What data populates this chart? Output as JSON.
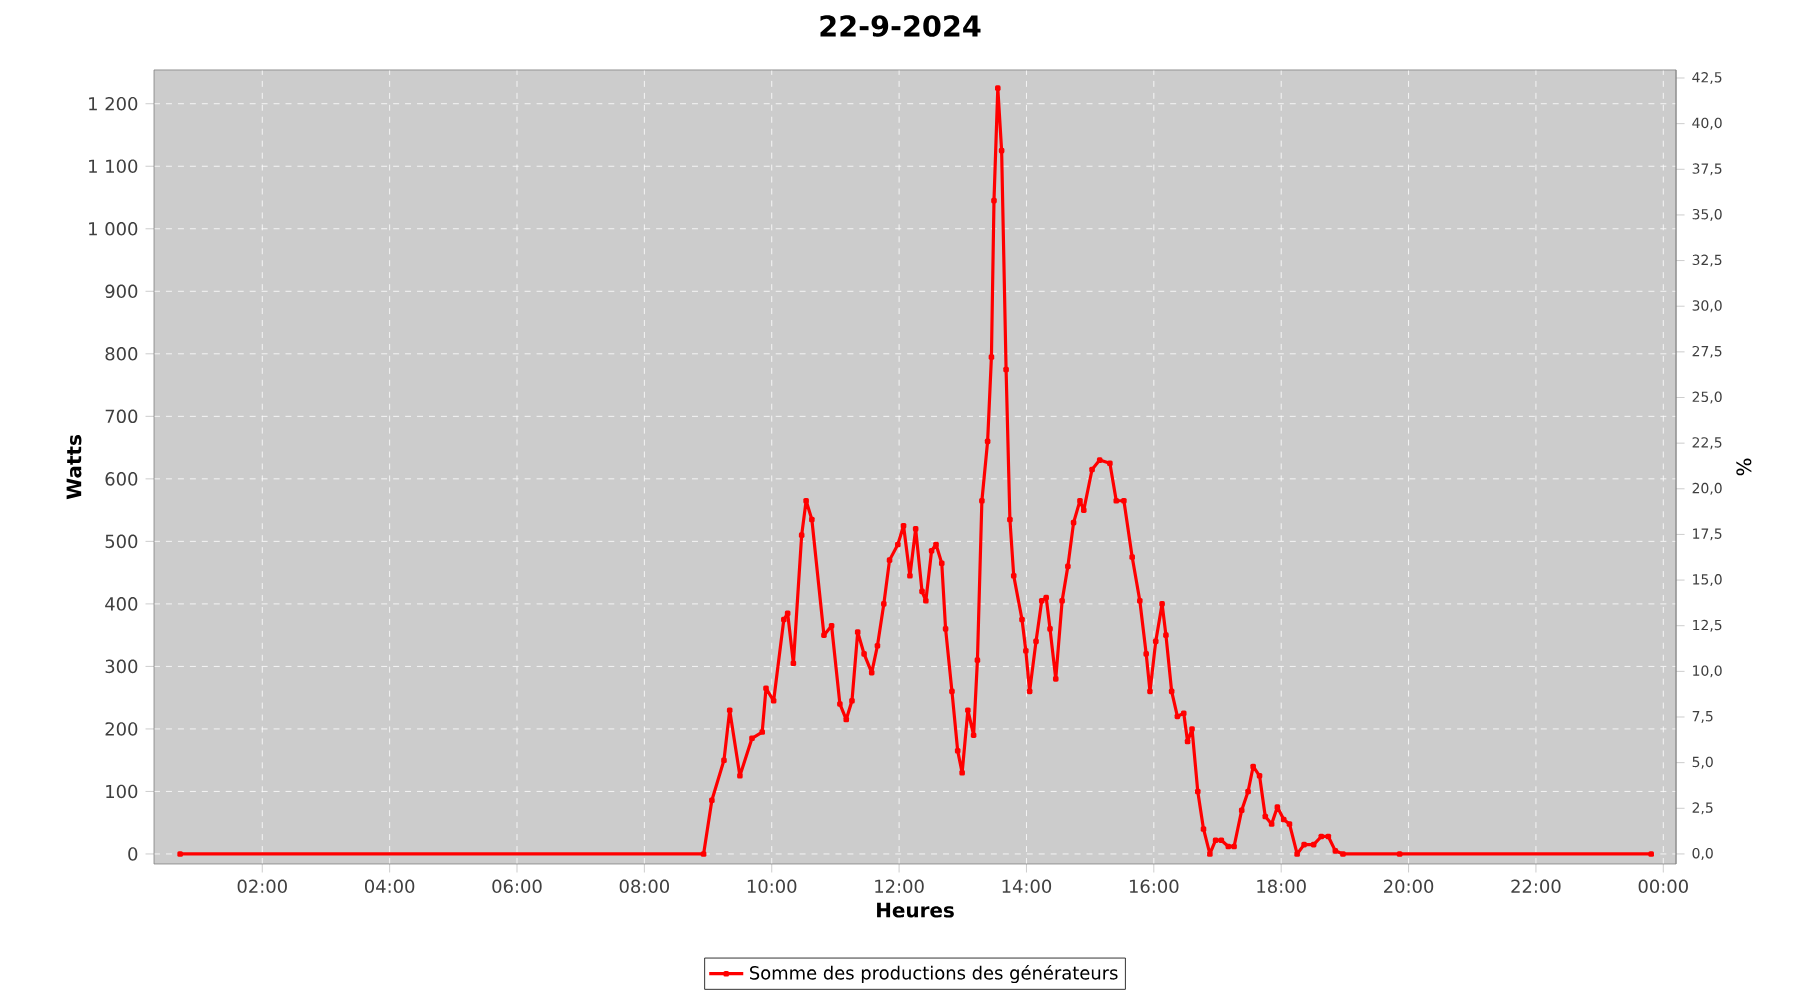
{
  "chart_data": {
    "type": "line",
    "title": "22-9-2024",
    "xlabel": "Heures",
    "ylabel": "Watts",
    "y2label": "%",
    "series": [
      {
        "name": "Somme des productions des  générateurs",
        "color": "#ff0000",
        "x": [
          0.71,
          8.93,
          9.06,
          9.25,
          9.34,
          9.5,
          9.69,
          9.85,
          9.91,
          10.03,
          10.19,
          10.25,
          10.34,
          10.47,
          10.54,
          10.63,
          10.82,
          10.94,
          11.07,
          11.17,
          11.26,
          11.35,
          11.45,
          11.57,
          11.66,
          11.76,
          11.85,
          11.98,
          12.07,
          12.17,
          12.26,
          12.36,
          12.42,
          12.51,
          12.58,
          12.67,
          12.73,
          12.83,
          12.92,
          12.99,
          13.08,
          13.17,
          13.23,
          13.3,
          13.39,
          13.45,
          13.49,
          13.55,
          13.61,
          13.68,
          13.74,
          13.8,
          13.93,
          13.99,
          14.05,
          14.15,
          14.24,
          14.31,
          14.37,
          14.46,
          14.56,
          14.65,
          14.74,
          14.84,
          14.9,
          15.03,
          15.15,
          15.31,
          15.41,
          15.53,
          15.66,
          15.78,
          15.88,
          15.94,
          16.03,
          16.13,
          16.19,
          16.28,
          16.37,
          16.47,
          16.53,
          16.6,
          16.69,
          16.78,
          16.88,
          16.97,
          17.06,
          17.17,
          17.26,
          17.38,
          17.48,
          17.56,
          17.66,
          17.75,
          17.85,
          17.94,
          18.04,
          18.13,
          18.25,
          18.36,
          18.51,
          18.63,
          18.74,
          18.85,
          18.97,
          19.86,
          23.81
        ],
        "values": [
          0,
          0,
          86,
          150,
          230,
          125,
          185,
          195,
          265,
          245,
          375,
          385,
          305,
          510,
          565,
          535,
          350,
          365,
          240,
          215,
          245,
          355,
          320,
          290,
          333,
          400,
          470,
          495,
          525,
          445,
          520,
          420,
          405,
          485,
          495,
          465,
          360,
          260,
          165,
          130,
          230,
          190,
          310,
          565,
          660,
          795,
          1045,
          1225,
          1125,
          775,
          535,
          445,
          375,
          325,
          260,
          340,
          405,
          410,
          360,
          280,
          405,
          460,
          530,
          565,
          550,
          615,
          630,
          625,
          565,
          565,
          475,
          405,
          320,
          260,
          340,
          400,
          350,
          260,
          220,
          225,
          180,
          200,
          100,
          40,
          0,
          22,
          22,
          12,
          12,
          70,
          100,
          140,
          125,
          60,
          48,
          75,
          55,
          48,
          0,
          15,
          15,
          28,
          28,
          5,
          0,
          0,
          0
        ]
      }
    ],
    "xlim": [
      0.3,
      24.2
    ],
    "xticks": [
      {
        "value": 2,
        "label": "02:00"
      },
      {
        "value": 4,
        "label": "04:00"
      },
      {
        "value": 6,
        "label": "06:00"
      },
      {
        "value": 8,
        "label": "08:00"
      },
      {
        "value": 10,
        "label": "10:00"
      },
      {
        "value": 12,
        "label": "12:00"
      },
      {
        "value": 14,
        "label": "14:00"
      },
      {
        "value": 16,
        "label": "16:00"
      },
      {
        "value": 18,
        "label": "18:00"
      },
      {
        "value": 20,
        "label": "20:00"
      },
      {
        "value": 22,
        "label": "22:00"
      },
      {
        "value": 24,
        "label": "00:00"
      }
    ],
    "ylim": [
      -16,
      1254
    ],
    "yticks": [
      0,
      100,
      200,
      300,
      400,
      500,
      600,
      700,
      800,
      900,
      {
        "value": 1000,
        "label": "1 000"
      },
      {
        "value": 1100,
        "label": "1 100"
      },
      {
        "value": 1200,
        "label": "1 200"
      }
    ],
    "y2lim": [
      -0.55,
      42.94
    ],
    "y2ticks": [
      {
        "value": 0,
        "label": "0,0"
      },
      {
        "value": 2.5,
        "label": "2,5"
      },
      {
        "value": 5,
        "label": "5,0"
      },
      {
        "value": 7.5,
        "label": "7,5"
      },
      {
        "value": 10,
        "label": "10,0"
      },
      {
        "value": 12.5,
        "label": "12,5"
      },
      {
        "value": 15,
        "label": "15,0"
      },
      {
        "value": 17.5,
        "label": "17,5"
      },
      {
        "value": 20,
        "label": "20,0"
      },
      {
        "value": 22.5,
        "label": "22,5"
      },
      {
        "value": 25,
        "label": "25,0"
      },
      {
        "value": 27.5,
        "label": "27,5"
      },
      {
        "value": 30,
        "label": "30,0"
      },
      {
        "value": 32.5,
        "label": "32,5"
      },
      {
        "value": 35,
        "label": "35,0"
      },
      {
        "value": 37.5,
        "label": "37,5"
      },
      {
        "value": 40,
        "label": "40,0"
      },
      {
        "value": 42.5,
        "label": "42,5"
      }
    ],
    "grid": true,
    "legend": "bottom",
    "marker": "square",
    "line_style": "solid"
  }
}
